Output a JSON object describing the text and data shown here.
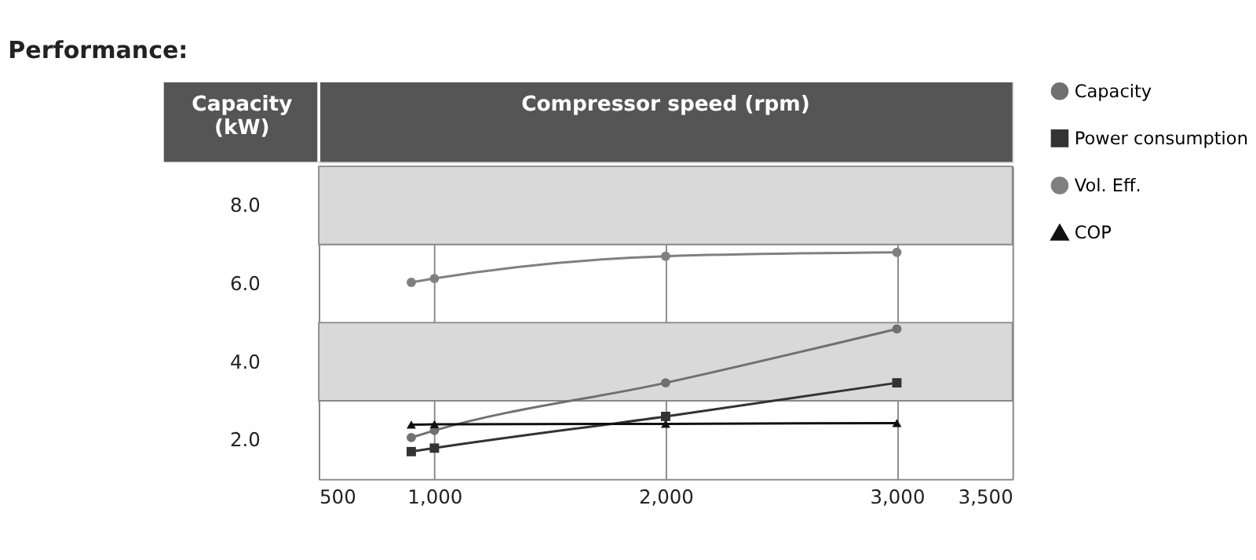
{
  "chart_data": {
    "type": "line",
    "title": "Performance:",
    "xlabel": "Compressor speed (rpm)",
    "ylabel": "Capacity (kW)",
    "xlim": [
      500,
      3500
    ],
    "xticks": [
      500,
      {
        "value": 1000,
        "label": "1,000"
      },
      {
        "value": 2000,
        "label": "2,000"
      },
      {
        "value": 3000,
        "label": "3,000"
      },
      {
        "value": 3500,
        "label": "3,500"
      }
    ],
    "ylim": [
      1,
      9
    ],
    "yticks": [
      {
        "value": 2,
        "label": "2.0"
      },
      {
        "value": 4,
        "label": "4.0"
      },
      {
        "value": 6,
        "label": "6.0"
      },
      {
        "value": 8,
        "label": "8.0"
      }
    ],
    "grid": "x",
    "legend": "right",
    "line_style": "solid",
    "bands": [
      {
        "axis": "y",
        "from": 3,
        "to": 5,
        "color": "#d9d9d9"
      },
      {
        "axis": "y",
        "from": 7,
        "to": 9,
        "color": "#d9d9d9"
      }
    ],
    "series": [
      {
        "name": "Capacity",
        "color": "#707070",
        "marker": "circle",
        "x": [
          900,
          1000,
          2000,
          3000
        ],
        "values": [
          2.06,
          2.24,
          3.46,
          4.84
        ]
      },
      {
        "name": "Power consumption",
        "color": "#333333",
        "marker": "square",
        "x": [
          900,
          1000,
          2000,
          3000
        ],
        "values": [
          1.7,
          1.79,
          2.6,
          3.46
        ]
      },
      {
        "name": "Vol. Eff.",
        "color": "#808080",
        "marker": "circle",
        "x": [
          900,
          1000,
          2000,
          3000
        ],
        "values": [
          6.03,
          6.13,
          6.7,
          6.8
        ]
      },
      {
        "name": "COP",
        "color": "#111111",
        "marker": "triangle",
        "x": [
          900,
          1000,
          2000,
          3000
        ],
        "values": [
          2.39,
          2.4,
          2.41,
          2.43
        ]
      }
    ]
  }
}
